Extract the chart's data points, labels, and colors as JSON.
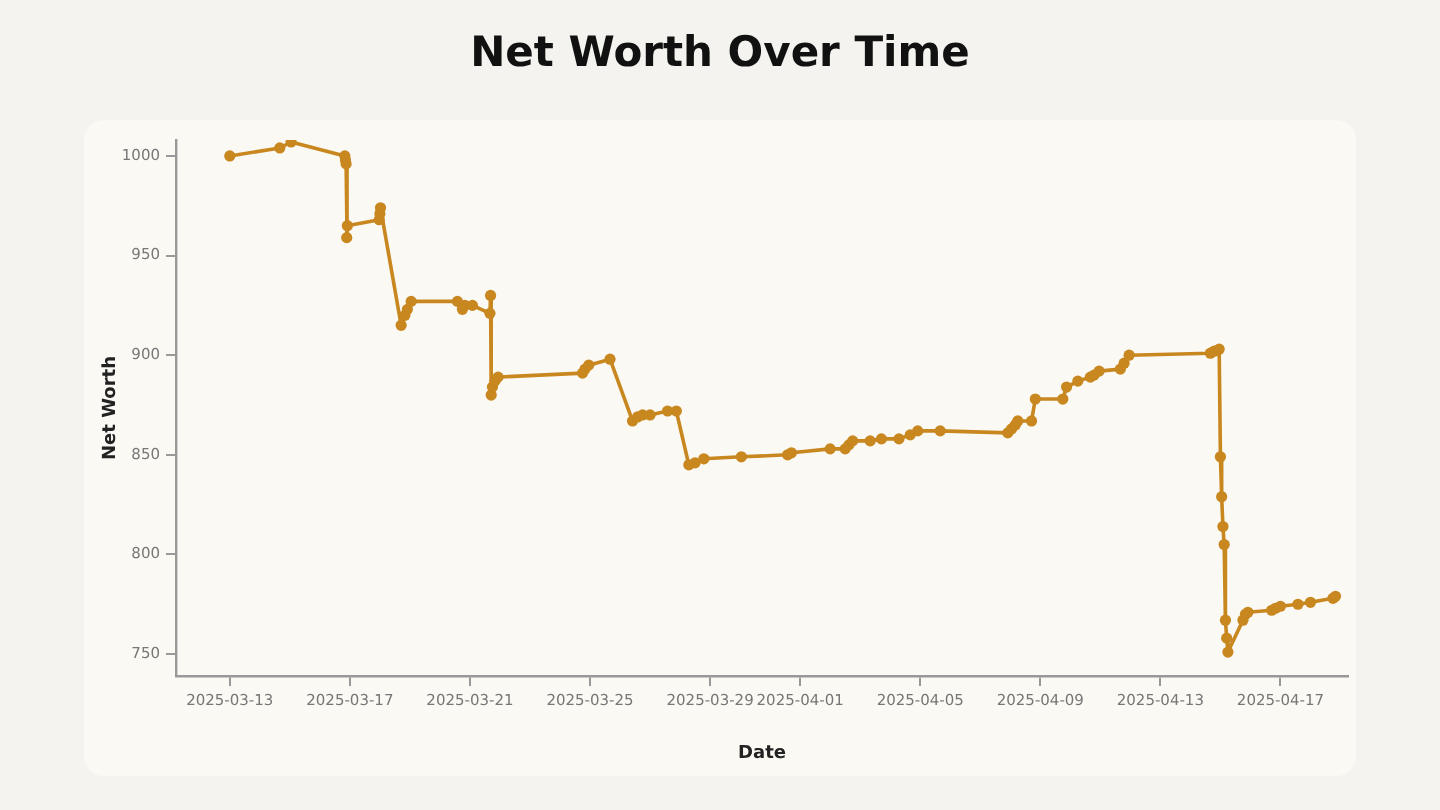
{
  "chart_data": {
    "type": "line",
    "title": "Net Worth Over Time",
    "xlabel": "Date",
    "ylabel": "Net Worth",
    "xlim": [
      "2025-03-11T05:00",
      "2025-04-19T06:00"
    ],
    "xticks": [
      "2025-03-13",
      "2025-03-17",
      "2025-03-21",
      "2025-03-25",
      "2025-03-29",
      "2025-04-01",
      "2025-04-05",
      "2025-04-09",
      "2025-04-13",
      "2025-04-17"
    ],
    "ylim": [
      739,
      1008
    ],
    "yticks": [
      750,
      800,
      850,
      900,
      950,
      1000
    ],
    "grid": false,
    "legend": false,
    "marker": "circle",
    "line_style": "solid",
    "series": [
      {
        "color": "#c8871f",
        "x": [
          "2025-03-13T00:00",
          "2025-03-14T16:00",
          "2025-03-15T01:00",
          "2025-03-16T20:00",
          "2025-03-16T20:30",
          "2025-03-16T21:00",
          "2025-03-16T21:30",
          "2025-03-16T22:00",
          "2025-03-17T23:30",
          "2025-03-18T00:00",
          "2025-03-18T00:30",
          "2025-03-18T17:00",
          "2025-03-18T20:00",
          "2025-03-18T22:00",
          "2025-03-19T01:00",
          "2025-03-20T14:00",
          "2025-03-20T18:00",
          "2025-03-20T20:00",
          "2025-03-21T02:00",
          "2025-03-21T16:00",
          "2025-03-21T16:30",
          "2025-03-21T17:00",
          "2025-03-21T18:00",
          "2025-03-21T20:00",
          "2025-03-21T22:30",
          "2025-03-24T18:00",
          "2025-03-24T20:00",
          "2025-03-24T23:00",
          "2025-03-25T16:00",
          "2025-03-26T10:00",
          "2025-03-26T14:00",
          "2025-03-26T18:00",
          "2025-03-27T00:00",
          "2025-03-27T14:00",
          "2025-03-27T21:00",
          "2025-03-28T07:00",
          "2025-03-28T12:00",
          "2025-03-28T19:00",
          "2025-03-30T01:00",
          "2025-03-31T14:00",
          "2025-03-31T17:00",
          "2025-04-02T00:00",
          "2025-04-02T12:00",
          "2025-04-02T15:00",
          "2025-04-02T18:00",
          "2025-04-03T08:00",
          "2025-04-03T17:00",
          "2025-04-04T07:00",
          "2025-04-04T16:00",
          "2025-04-04T22:00",
          "2025-04-05T16:00",
          "2025-04-07T22:00",
          "2025-04-08T01:00",
          "2025-04-08T04:00",
          "2025-04-08T06:00",
          "2025-04-08T17:00",
          "2025-04-08T20:00",
          "2025-04-09T18:00",
          "2025-04-09T21:00",
          "2025-04-10T06:00",
          "2025-04-10T16:00",
          "2025-04-10T19:00",
          "2025-04-10T23:00",
          "2025-04-11T16:00",
          "2025-04-11T19:00",
          "2025-04-11T23:00",
          "2025-04-14T16:00",
          "2025-04-14T19:00",
          "2025-04-14T23:00",
          "2025-04-15T00:00",
          "2025-04-15T01:00",
          "2025-04-15T02:00",
          "2025-04-15T03:00",
          "2025-04-15T04:00",
          "2025-04-15T05:00",
          "2025-04-15T06:00",
          "2025-04-15T18:00",
          "2025-04-15T20:00",
          "2025-04-15T22:00",
          "2025-04-16T17:00",
          "2025-04-16T20:00",
          "2025-04-17T00:00",
          "2025-04-17T14:00",
          "2025-04-18T00:00",
          "2025-04-18T18:00",
          "2025-04-18T20:00"
        ],
        "values": [
          1000,
          1004,
          1007,
          1000,
          998,
          996,
          959,
          965,
          968,
          971,
          974,
          915,
          920,
          923,
          927,
          927,
          923,
          925,
          925,
          921,
          930,
          880,
          884,
          887,
          889,
          891,
          893,
          895,
          898,
          867,
          869,
          870,
          870,
          872,
          872,
          845,
          846,
          848,
          849,
          850,
          851,
          853,
          853,
          855,
          857,
          857,
          858,
          858,
          860,
          862,
          862,
          861,
          863,
          865,
          867,
          867,
          878,
          878,
          884,
          887,
          889,
          890,
          892,
          893,
          896,
          900,
          901,
          902,
          903,
          849,
          829,
          814,
          805,
          767,
          758,
          751,
          767,
          770,
          771,
          772,
          773,
          774,
          775,
          776,
          778,
          779
        ]
      }
    ]
  }
}
